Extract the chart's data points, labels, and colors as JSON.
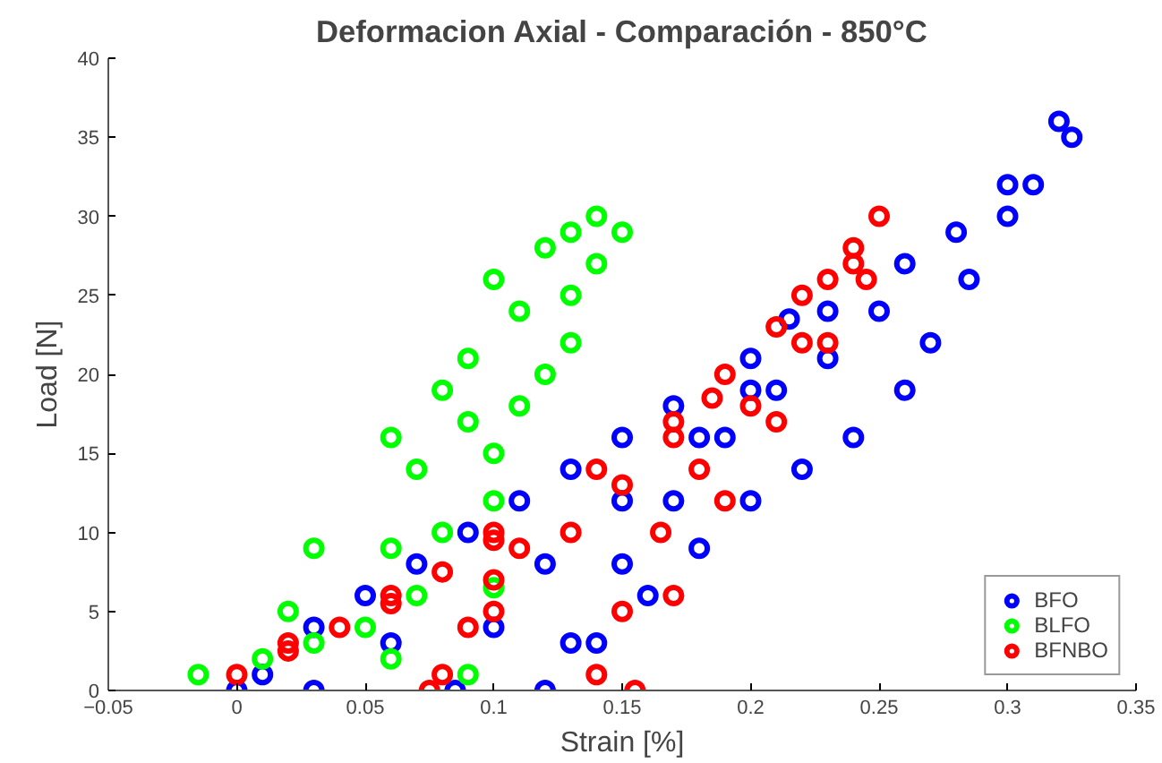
{
  "chart_data": {
    "type": "scatter",
    "title": "Deformacion Axial - Comparación - 850°C",
    "xlabel": "Strain [%]",
    "ylabel": "Load [N]",
    "xlim": [
      -0.05,
      0.35
    ],
    "ylim": [
      0,
      40
    ],
    "xticks": [
      -0.05,
      0,
      0.05,
      0.1,
      0.15,
      0.2,
      0.25,
      0.3,
      0.35
    ],
    "yticks": [
      0,
      5,
      10,
      15,
      20,
      25,
      30,
      35,
      40
    ],
    "grid": false,
    "legend": "bottom right",
    "marker": "circle",
    "series": [
      {
        "name": "BFO",
        "color": "#0000ff",
        "x": [
          0,
          0.01,
          0.03,
          0.05,
          0.07,
          0.09,
          0.11,
          0.13,
          0.15,
          0.17,
          0.2,
          0.23,
          0.26,
          0.28,
          0.3,
          0.32,
          0.325,
          0.31,
          0.3,
          0.285,
          0.27,
          0.26,
          0.24,
          0.22,
          0.2,
          0.18,
          0.16,
          0.14,
          0.12,
          0.13,
          0.15,
          0.17,
          0.19,
          0.21,
          0.23,
          0.25,
          0.03,
          0.06,
          0.085,
          0.1,
          0.12,
          0.15,
          0.18,
          0.2,
          0.215
        ],
        "values": [
          0,
          1,
          4,
          6,
          8,
          10,
          12,
          14,
          16,
          18,
          21,
          24,
          27,
          29,
          32,
          36,
          35,
          32,
          30,
          26,
          22,
          19,
          16,
          14,
          12,
          9,
          6,
          3,
          0,
          3,
          8,
          12,
          16,
          19,
          21,
          24,
          0,
          3,
          0,
          4,
          8,
          12,
          16,
          19,
          23.5
        ]
      },
      {
        "name": "BLFO",
        "color": "#00ff00",
        "x": [
          -0.015,
          0.01,
          0.03,
          0.06,
          0.09,
          0.05,
          0.02,
          0.07,
          0.1,
          0.06,
          0.03,
          0.08,
          0.1,
          0.07,
          0.1,
          0.06,
          0.09,
          0.11,
          0.08,
          0.12,
          0.09,
          0.13,
          0.11,
          0.13,
          0.1,
          0.14,
          0.12,
          0.14,
          0.15,
          0.13
        ],
        "values": [
          1,
          2,
          3,
          2,
          1,
          4,
          5,
          6,
          6.5,
          9,
          9,
          10,
          12,
          14,
          15,
          16,
          17,
          18,
          19,
          20,
          21,
          22,
          24,
          25,
          26,
          27,
          28,
          30,
          29,
          29
        ]
      },
      {
        "name": "BFNBO",
        "color": "#ff0000",
        "x": [
          0,
          0.02,
          0.04,
          0.06,
          0.08,
          0.1,
          0.11,
          0.1,
          0.09,
          0.08,
          0.075,
          0.1,
          0.13,
          0.15,
          0.17,
          0.19,
          0.21,
          0.23,
          0.25,
          0.24,
          0.22,
          0.2,
          0.18,
          0.165,
          0.15,
          0.14,
          0.155,
          0.17,
          0.19,
          0.21,
          0.23,
          0.245,
          0.24,
          0.22,
          0.185,
          0.17,
          0.14,
          0.1,
          0.06,
          0.02
        ],
        "values": [
          1,
          2.5,
          4,
          5.5,
          7.5,
          9.5,
          9,
          7,
          4,
          1,
          0,
          5,
          10,
          13,
          16,
          20,
          23,
          26,
          30,
          27,
          22,
          18,
          14,
          10,
          5,
          1,
          0,
          6,
          12,
          17,
          22,
          26,
          28,
          25,
          18.5,
          17,
          14,
          10,
          6,
          3
        ]
      }
    ]
  }
}
